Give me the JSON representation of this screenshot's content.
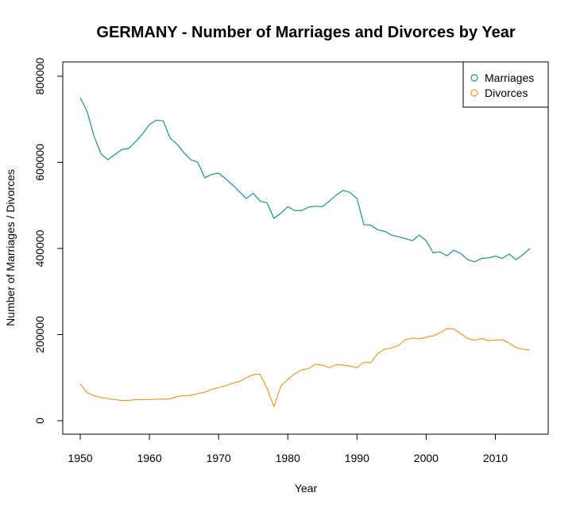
{
  "chart_data": {
    "type": "line",
    "title": "GERMANY - Number of Marriages and Divorces by Year",
    "xlabel": "Year",
    "ylabel": "Number of Marriages / Divorces",
    "xlim": [
      1950,
      2015
    ],
    "ylim": [
      0,
      800000
    ],
    "x_ticks": [
      "1950",
      "1960",
      "1970",
      "1980",
      "1990",
      "2000",
      "2010"
    ],
    "y_ticks": [
      "0",
      "200000",
      "400000",
      "600000",
      "800000"
    ],
    "grid": false,
    "legend_position": "top-right",
    "years": [
      1950,
      1951,
      1952,
      1953,
      1954,
      1955,
      1956,
      1957,
      1958,
      1959,
      1960,
      1961,
      1962,
      1963,
      1964,
      1965,
      1966,
      1967,
      1968,
      1969,
      1970,
      1971,
      1972,
      1973,
      1974,
      1975,
      1976,
      1977,
      1978,
      1979,
      1980,
      1981,
      1982,
      1983,
      1984,
      1985,
      1986,
      1987,
      1988,
      1989,
      1990,
      1991,
      1992,
      1993,
      1994,
      1995,
      1996,
      1997,
      1998,
      1999,
      2000,
      2001,
      2002,
      2003,
      2004,
      2005,
      2006,
      2007,
      2008,
      2009,
      2010,
      2011,
      2012,
      2013,
      2014,
      2015
    ],
    "series": [
      {
        "name": "Marriages",
        "color": "#1f9196",
        "values": [
          750000,
          718000,
          660000,
          620000,
          606000,
          618000,
          630000,
          632000,
          648000,
          666000,
          688000,
          698000,
          696000,
          656000,
          642000,
          622000,
          606000,
          600000,
          564000,
          572000,
          575000,
          562000,
          548000,
          532000,
          516000,
          528000,
          510000,
          506000,
          470000,
          482000,
          497000,
          488000,
          488000,
          496000,
          498000,
          497000,
          510000,
          524000,
          535000,
          530000,
          516000,
          455000,
          454000,
          443000,
          440000,
          431000,
          427000,
          423000,
          418000,
          431000,
          418000,
          390000,
          392000,
          383000,
          396000,
          388000,
          374000,
          369000,
          377000,
          378000,
          382000,
          377000,
          387000,
          374000,
          386000,
          400000
        ]
      },
      {
        "name": "Divorces",
        "color": "#e89a2a",
        "values": [
          85000,
          65000,
          58000,
          54000,
          51000,
          49000,
          47000,
          47000,
          49000,
          49000,
          49000,
          50000,
          50000,
          51000,
          56000,
          58000,
          59000,
          63000,
          66000,
          73000,
          77000,
          81000,
          87000,
          91000,
          100000,
          107000,
          108000,
          75000,
          33000,
          80000,
          96000,
          109000,
          118000,
          121000,
          131000,
          129000,
          123000,
          130000,
          129000,
          127000,
          123000,
          136000,
          135000,
          156000,
          166000,
          169000,
          175000,
          188000,
          192000,
          190000,
          194000,
          197000,
          204000,
          214000,
          213000,
          202000,
          191000,
          187000,
          191000,
          186000,
          187000,
          188000,
          180000,
          170000,
          166000,
          164000
        ]
      }
    ]
  }
}
